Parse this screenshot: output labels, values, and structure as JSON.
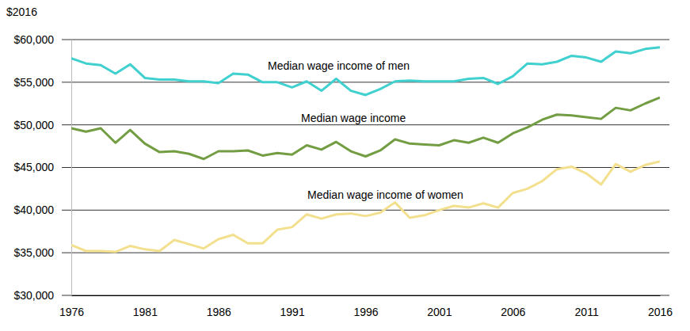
{
  "chart_data": {
    "type": "line",
    "y_label": "$2016",
    "x": [
      1976,
      1977,
      1978,
      1979,
      1980,
      1981,
      1982,
      1983,
      1984,
      1985,
      1986,
      1987,
      1988,
      1989,
      1990,
      1991,
      1992,
      1993,
      1994,
      1995,
      1996,
      1997,
      1998,
      1999,
      2000,
      2001,
      2002,
      2003,
      2004,
      2005,
      2006,
      2007,
      2008,
      2009,
      2010,
      2011,
      2012,
      2013,
      2014,
      2015,
      2016
    ],
    "series": [
      {
        "name": "Median wage income of men",
        "color": "#3fd0cf",
        "values": [
          57800,
          57200,
          57000,
          56000,
          57100,
          55500,
          55300,
          55300,
          55100,
          55100,
          54900,
          56000,
          55900,
          55000,
          55000,
          54400,
          55100,
          54000,
          55400,
          54000,
          53500,
          54200,
          55100,
          55200,
          55100,
          55100,
          55100,
          55400,
          55500,
          54800,
          55700,
          57200,
          57100,
          57400,
          58100,
          57900,
          57400,
          58600,
          58400,
          58900,
          59100
        ]
      },
      {
        "name": "Median wage income",
        "color": "#739d42",
        "values": [
          49600,
          49200,
          49600,
          47900,
          49400,
          47800,
          46800,
          46900,
          46600,
          46000,
          46900,
          46900,
          47000,
          46400,
          46700,
          46500,
          47600,
          47100,
          48000,
          46900,
          46300,
          47000,
          48300,
          47800,
          47700,
          47600,
          48200,
          47900,
          48500,
          47900,
          49000,
          49700,
          50600,
          51200,
          51100,
          50900,
          50700,
          52000,
          51700,
          52500,
          53200
        ]
      },
      {
        "name": "Median wage income of women",
        "color": "#f3e08e",
        "values": [
          35900,
          35200,
          35200,
          35100,
          35800,
          35400,
          35200,
          36500,
          36000,
          35500,
          36600,
          37100,
          36100,
          36100,
          37700,
          38000,
          39500,
          39000,
          39500,
          39600,
          39300,
          39700,
          40900,
          39100,
          39400,
          40000,
          40500,
          40300,
          40800,
          40300,
          42000,
          42500,
          43400,
          44800,
          45100,
          44300,
          43000,
          45400,
          44500,
          45300,
          45700
        ]
      }
    ],
    "xlim": [
      1976,
      2016
    ],
    "xticks": [
      1976,
      1981,
      1986,
      1991,
      1996,
      2001,
      2006,
      2011,
      2016
    ],
    "ylim": [
      30000,
      60000
    ],
    "yticks": [
      {
        "value": 30000,
        "label": "$30,000"
      },
      {
        "value": 35000,
        "label": "$35,000"
      },
      {
        "value": 40000,
        "label": "$40,000"
      },
      {
        "value": 45000,
        "label": "$45,000"
      },
      {
        "value": 50000,
        "label": "$50,000"
      },
      {
        "value": 55000,
        "label": "$55,000"
      },
      {
        "value": 60000,
        "label": "$60,000"
      }
    ],
    "grid": true
  }
}
